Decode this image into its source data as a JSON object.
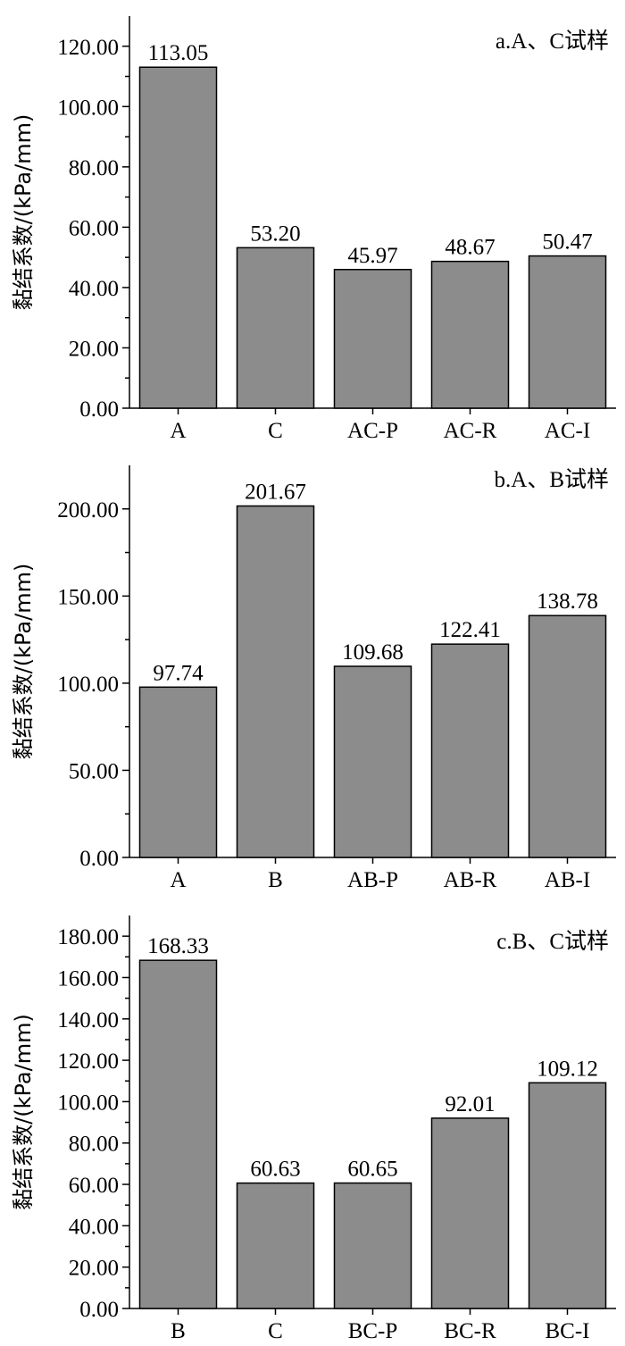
{
  "chart_data": [
    {
      "type": "bar",
      "title": "a.A、C试样",
      "ylabel": "黏结系数/(kPa/mm)",
      "categories": [
        "A",
        "C",
        "AC-P",
        "AC-R",
        "AC-I"
      ],
      "values": [
        113.05,
        53.2,
        45.97,
        48.67,
        50.47
      ],
      "value_labels": [
        "113.05",
        "53.20",
        "45.97",
        "48.67",
        "50.47"
      ],
      "ylim": [
        0,
        130
      ],
      "yticks": [
        0,
        20,
        40,
        60,
        80,
        100,
        120
      ],
      "ytick_labels": [
        "0.00",
        "20.00",
        "40.00",
        "60.00",
        "80.00",
        "100.00",
        "120.00"
      ],
      "bar_color": "#8c8c8c"
    },
    {
      "type": "bar",
      "title": "b.A、B试样",
      "ylabel": "黏结系数/(kPa/mm)",
      "categories": [
        "A",
        "B",
        "AB-P",
        "AB-R",
        "AB-I"
      ],
      "values": [
        97.74,
        201.67,
        109.68,
        122.41,
        138.78
      ],
      "value_labels": [
        "97.74",
        "201.67",
        "109.68",
        "122.41",
        "138.78"
      ],
      "ylim": [
        0,
        225
      ],
      "yticks": [
        0,
        50,
        100,
        150,
        200
      ],
      "ytick_labels": [
        "0.00",
        "50.00",
        "100.00",
        "150.00",
        "200.00"
      ],
      "bar_color": "#8c8c8c"
    },
    {
      "type": "bar",
      "title": "c.B、C试样",
      "ylabel": "黏结系数/(kPa/mm)",
      "categories": [
        "B",
        "C",
        "BC-P",
        "BC-R",
        "BC-I"
      ],
      "values": [
        168.33,
        60.63,
        60.65,
        92.01,
        109.12
      ],
      "value_labels": [
        "168.33",
        "60.63",
        "60.65",
        "92.01",
        "109.12"
      ],
      "ylim": [
        0,
        190
      ],
      "yticks": [
        0,
        20,
        40,
        60,
        80,
        100,
        120,
        140,
        160,
        180
      ],
      "ytick_labels": [
        "0.00",
        "20.00",
        "40.00",
        "60.00",
        "80.00",
        "100.00",
        "120.00",
        "140.00",
        "160.00",
        "180.00"
      ],
      "bar_color": "#8c8c8c"
    }
  ]
}
